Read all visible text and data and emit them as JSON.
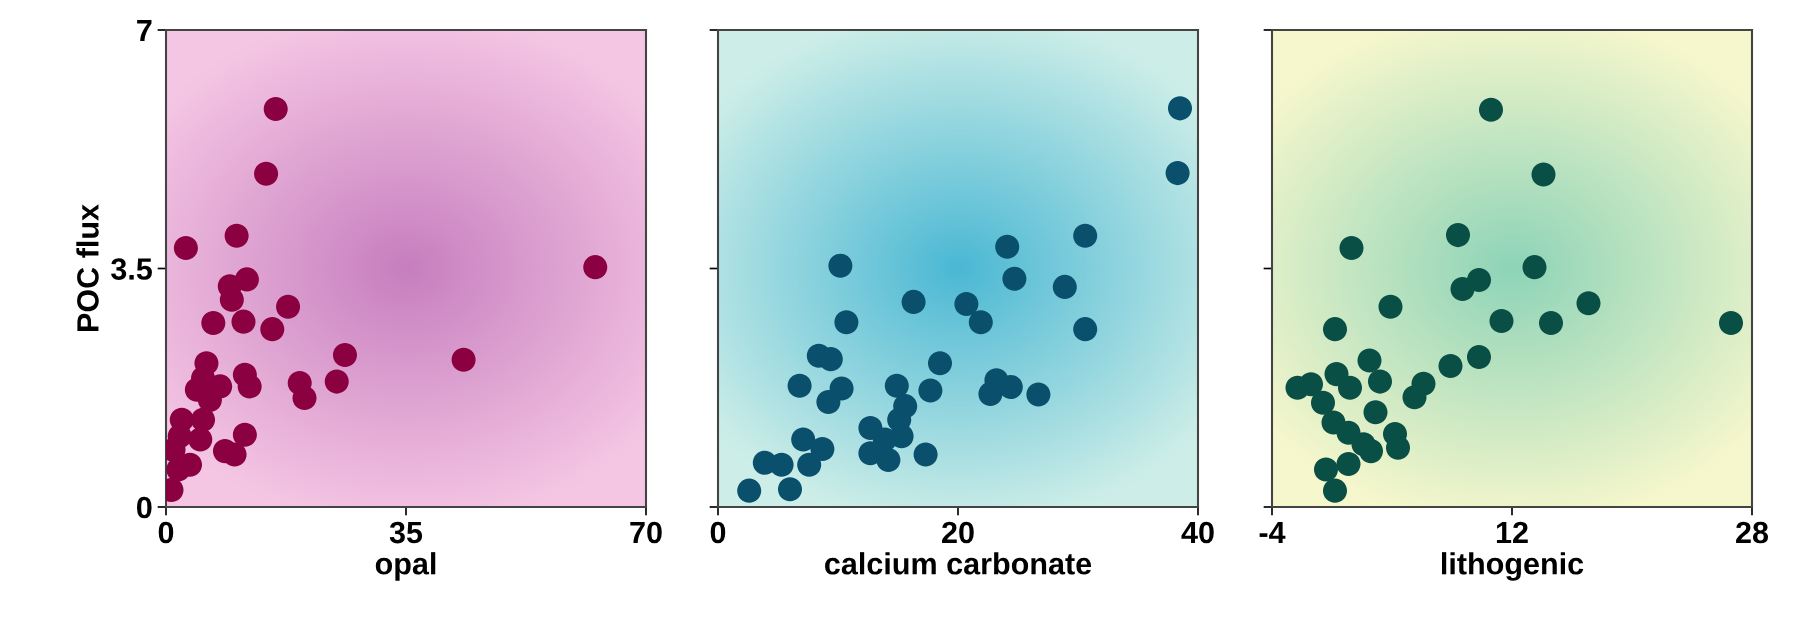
{
  "chart_data": [
    {
      "type": "scatter",
      "xlabel": "opal",
      "ylabel": "POC flux",
      "xlim": [
        0,
        70
      ],
      "ylim": [
        0,
        7
      ],
      "xticks": [
        0,
        35,
        70
      ],
      "yticks": [
        0,
        3.5,
        7
      ],
      "marker": "circle",
      "grid": false,
      "series": [
        {
          "color": "#8b0040",
          "x": [
            16.0,
            14.6,
            10.3,
            2.9,
            62.6,
            11.8,
            9.3,
            17.8,
            9.6,
            6.9,
            10.0,
            11.3,
            15.5,
            26.1,
            43.4,
            5.9,
            11.5,
            12.2,
            19.5,
            20.2,
            24.9,
            5.4,
            7.9,
            4.5,
            6.4,
            3.0,
            2.3,
            5.4,
            2.0,
            5.0,
            11.5,
            8.6,
            10.0,
            1.1,
            3.5,
            0.8,
            1.8
          ],
          "values": [
            5.84,
            4.89,
            3.98,
            3.8,
            3.52,
            3.34,
            3.24,
            2.94,
            3.04,
            2.7,
            null,
            2.72,
            2.61,
            2.23,
            2.16,
            2.11,
            1.94,
            1.77,
            1.82,
            1.6,
            1.84,
            1.89,
            1.77,
            1.72,
            1.57,
            null,
            1.28,
            1.28,
            1.04,
            0.99,
            1.06,
            0.82,
            0.77,
            0.84,
            0.62,
            0.25,
            0.55
          ]
        }
      ]
    },
    {
      "type": "scatter",
      "xlabel": "calcium carbonate",
      "xlim": [
        0,
        40
      ],
      "ylim": [
        0,
        7
      ],
      "xticks": [
        0,
        20,
        40
      ],
      "yticks": [
        0,
        3.5,
        7
      ],
      "tick_labels": "x",
      "marker": "circle",
      "grid": false,
      "series": [
        {
          "color": "#0a4f6b",
          "x": [
            38.5,
            38.3,
            30.6,
            24.1,
            10.2,
            24.7,
            28.9,
            16.3,
            20.7,
            21.9,
            30.2,
            30.6,
            10.7,
            8.4,
            9.4,
            18.5,
            6.8,
            10.3,
            9.2,
            14.9,
            17.7,
            23.2,
            24.4,
            22.7,
            26.7,
            15.6,
            15.1,
            12.7,
            15.3,
            13.9,
            12.7,
            14.2,
            17.3,
            7.1,
            8.7,
            3.9,
            5.3,
            7.6,
            6.0,
            2.6
          ],
          "values": [
            5.85,
            4.9,
            3.98,
            3.82,
            3.54,
            3.35,
            3.23,
            3.01,
            2.98,
            2.71,
            null,
            2.61,
            2.71,
            2.22,
            2.17,
            2.11,
            1.78,
            1.74,
            1.54,
            1.78,
            1.71,
            1.86,
            1.76,
            1.66,
            1.65,
            1.48,
            1.28,
            1.16,
            1.04,
            0.99,
            0.79,
            0.69,
            0.77,
            0.99,
            0.85,
            0.65,
            0.62,
            0.62,
            0.26,
            0.24
          ]
        }
      ]
    },
    {
      "type": "scatter",
      "xlabel": "lithogenic",
      "xlim": [
        -4,
        28
      ],
      "ylim": [
        0,
        7
      ],
      "xticks": [
        -4,
        12,
        28
      ],
      "yticks": [
        0,
        3.5,
        7
      ],
      "tick_labels": "x",
      "marker": "circle",
      "grid": false,
      "series": [
        {
          "color": "#0a4f45",
          "x": [
            10.6,
            14.1,
            8.4,
            1.3,
            13.5,
            9.8,
            8.7,
            3.9,
            17.1,
            11.3,
            14.6,
            26.6,
            0.2,
            9.8,
            7.9,
            2.5,
            3.2,
            6.1,
            5.5,
            -2.3,
            -1.4,
            0.3,
            1.2,
            -0.6,
            2.9,
            0.1,
            1.1,
            4.2,
            2.1,
            4.4,
            -0.4,
            1.1,
            0.2,
            2.6
          ],
          "values": [
            5.83,
            4.88,
            3.99,
            3.8,
            3.52,
            3.33,
            3.2,
            2.94,
            2.99,
            2.73,
            2.7,
            2.7,
            2.61,
            2.2,
            2.07,
            2.15,
            1.84,
            1.81,
            1.61,
            1.75,
            1.8,
            1.95,
            1.75,
            1.53,
            1.39,
            1.24,
            1.09,
            1.07,
            0.92,
            0.87,
            0.55,
            0.63,
            0.24,
            0.82
          ]
        }
      ]
    }
  ]
}
